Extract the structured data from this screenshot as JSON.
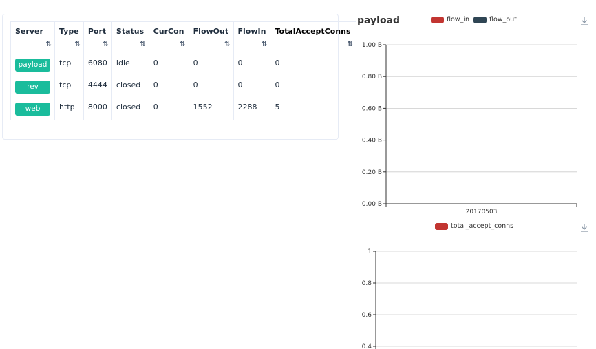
{
  "proxy_table": {
    "columns": [
      "Server",
      "Type",
      "Port",
      "Status",
      "CurCon",
      "FlowOut",
      "FlowIn",
      "TotalAcceptConns"
    ],
    "sort_icon": "⇅",
    "rows": [
      {
        "server": "payload",
        "type": "tcp",
        "port": "6080",
        "status": "idle",
        "curcon": "0",
        "flowout": "0",
        "flowin": "0",
        "total": "0"
      },
      {
        "server": "rev",
        "type": "tcp",
        "port": "4444",
        "status": "closed",
        "curcon": "0",
        "flowout": "0",
        "flowin": "0",
        "total": "0"
      },
      {
        "server": "web",
        "type": "http",
        "port": "8000",
        "status": "closed",
        "curcon": "0",
        "flowout": "1552",
        "flowin": "2288",
        "total": "5"
      }
    ],
    "server_button_color": "#1abc9c"
  },
  "traffic_chart_title": "payload",
  "download_icon": "download-icon",
  "chart_data": [
    {
      "type": "bar",
      "title": "payload",
      "categories": [
        "20170503"
      ],
      "series": [
        {
          "name": "flow_in",
          "values": [
            0
          ],
          "color": "#c23531"
        },
        {
          "name": "flow_out",
          "values": [
            0
          ],
          "color": "#2f4554"
        }
      ],
      "yticks": [
        "0.00 B",
        "0.20 B",
        "0.40 B",
        "0.60 B",
        "0.80 B",
        "1.00 B"
      ],
      "ylim": [
        0,
        1
      ],
      "grid": true,
      "legend_position": "top"
    },
    {
      "type": "bar",
      "series": [
        {
          "name": "total_accept_conns",
          "values": [],
          "color": "#c23531"
        }
      ],
      "yticks": [
        "0.4",
        "0.6",
        "0.8",
        "1"
      ],
      "ylim": [
        0,
        1
      ],
      "grid": true,
      "legend_position": "top"
    }
  ]
}
